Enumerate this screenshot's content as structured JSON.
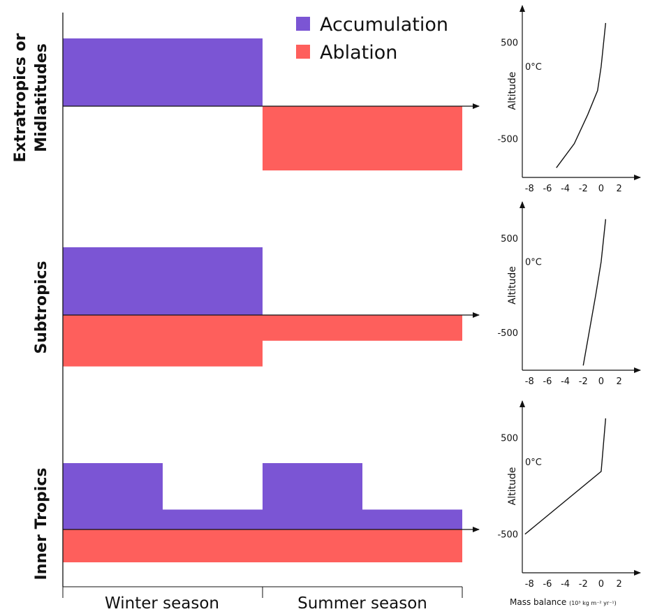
{
  "legend": {
    "accumulation": {
      "label": "Accumulation",
      "color": "#7b55d4"
    },
    "ablation": {
      "label": "Ablation",
      "color": "#fe5f5c"
    }
  },
  "seasons": [
    "Winter season",
    "Summer season"
  ],
  "chart_data": [
    {
      "type": "bar",
      "name": "Extratropics or Midlatitudes",
      "title": "Extratropics or Midlatitudes",
      "title_lines": [
        "Extratropics or",
        "Midlatitudes"
      ],
      "categories": [
        "Winter season",
        "Summer season"
      ],
      "series": [
        {
          "name": "Accumulation",
          "segments": [
            {
              "start": 0,
              "end": 0.5,
              "value": 1.0
            },
            {
              "start": 0.5,
              "end": 1.0,
              "value": 0
            }
          ]
        },
        {
          "name": "Ablation",
          "segments": [
            {
              "start": 0,
              "end": 0.5,
              "value": 0
            },
            {
              "start": 0.5,
              "end": 1.0,
              "value": 1.0
            }
          ]
        }
      ]
    },
    {
      "type": "bar",
      "name": "Subtropics",
      "title": "Subtropics",
      "title_lines": [
        "Subtropics"
      ],
      "categories": [
        "Winter season",
        "Summer season"
      ],
      "series": [
        {
          "name": "Accumulation",
          "segments": [
            {
              "start": 0,
              "end": 0.5,
              "value": 1.0
            },
            {
              "start": 0.5,
              "end": 1.0,
              "value": 0
            }
          ]
        },
        {
          "name": "Ablation",
          "segments": [
            {
              "start": 0,
              "end": 0.5,
              "value": 0.8
            },
            {
              "start": 0.5,
              "end": 1.0,
              "value": 0.4
            }
          ]
        }
      ]
    },
    {
      "type": "bar",
      "name": "Inner Tropics",
      "title": "Inner Tropics",
      "title_lines": [
        "Inner Tropics"
      ],
      "categories": [
        "Winter season",
        "Summer season"
      ],
      "series": [
        {
          "name": "Accumulation",
          "segments": [
            {
              "start": 0,
              "end": 0.25,
              "value": 1.0
            },
            {
              "start": 0.25,
              "end": 0.5,
              "value": 0.3
            },
            {
              "start": 0.5,
              "end": 0.75,
              "value": 1.0
            },
            {
              "start": 0.75,
              "end": 1.0,
              "value": 0.3
            }
          ]
        },
        {
          "name": "Ablation",
          "segments": [
            {
              "start": 0,
              "end": 1.0,
              "value": 0.5
            }
          ]
        }
      ]
    },
    {
      "type": "line",
      "name": "Extratropics or Midlatitudes mass balance profile",
      "ylabel": "Altitude",
      "xlabel": "",
      "freezing_label": "0°C",
      "freezing_altitude": 250,
      "xlim": [
        -8.8,
        2.5
      ],
      "ylim": [
        -900,
        750
      ],
      "xticks": [
        -8,
        -6,
        -4,
        -2,
        0,
        2
      ],
      "yticks": [
        500,
        -500
      ],
      "x": [
        -5.0,
        -3.0,
        -1.5,
        -0.4,
        0.0,
        0.5
      ],
      "y": [
        -800,
        -550,
        -250,
        0,
        250,
        700
      ]
    },
    {
      "type": "line",
      "name": "Subtropics mass balance profile",
      "ylabel": "Altitude",
      "xlabel": "",
      "freezing_label": "0°C",
      "freezing_altitude": 250,
      "xlim": [
        -8.8,
        2.5
      ],
      "ylim": [
        -900,
        750
      ],
      "xticks": [
        -8,
        -6,
        -4,
        -2,
        0,
        2
      ],
      "yticks": [
        500,
        -500
      ],
      "x": [
        -2.0,
        -0.6,
        0.0,
        0.5
      ],
      "y": [
        -850,
        -100,
        250,
        700
      ]
    },
    {
      "type": "line",
      "name": "Inner Tropics mass balance profile",
      "ylabel": "Altitude",
      "xlabel": "Mass balance",
      "xlabel_unit": "(10³ kg m⁻² yr⁻¹)",
      "freezing_label": "0°C",
      "freezing_altitude": 250,
      "xlim": [
        -8.8,
        2.5
      ],
      "ylim": [
        -900,
        750
      ],
      "xticks": [
        -8,
        -6,
        -4,
        -2,
        0,
        2
      ],
      "yticks": [
        500,
        -500
      ],
      "x": [
        -8.5,
        0.0,
        0.5
      ],
      "y": [
        -500,
        150,
        700
      ]
    }
  ]
}
